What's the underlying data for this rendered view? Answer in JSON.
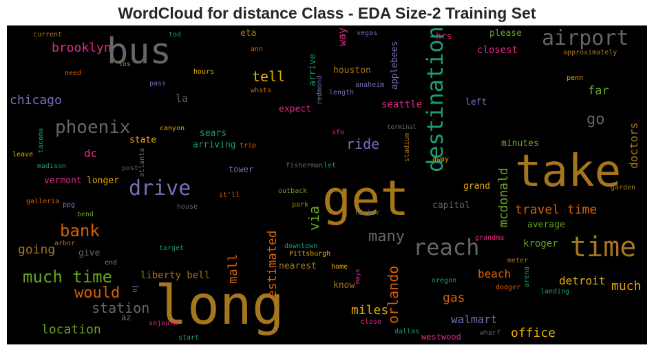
{
  "chart_data": {
    "type": "wordcloud",
    "title": "WordCloud for distance Class - EDA Size-2 Training Set",
    "background": "#000000",
    "words": [
      {
        "text": "bus",
        "color": "#666666"
      },
      {
        "text": "airport",
        "color": "#666666"
      },
      {
        "text": "take",
        "color": "#a6761d"
      },
      {
        "text": "get",
        "color": "#a6761d"
      },
      {
        "text": "long",
        "color": "#a6761d"
      },
      {
        "text": "time",
        "color": "#a6761d"
      },
      {
        "text": "destination",
        "color": "#1b9e77"
      },
      {
        "text": "reach",
        "color": "#666666"
      },
      {
        "text": "drive",
        "color": "#7570b3"
      },
      {
        "text": "phoenix",
        "color": "#666666"
      },
      {
        "text": "bank",
        "color": "#d95f02"
      },
      {
        "text": "much time",
        "color": "#66a61e"
      },
      {
        "text": "would",
        "color": "#d95f02"
      },
      {
        "text": "station",
        "color": "#666666"
      },
      {
        "text": "location",
        "color": "#66a61e"
      },
      {
        "text": "brooklyn",
        "color": "#e7298a"
      },
      {
        "text": "chicago",
        "color": "#7570b3"
      },
      {
        "text": "tell",
        "color": "#e6ab02"
      },
      {
        "text": "ride",
        "color": "#7570b3"
      },
      {
        "text": "go",
        "color": "#666666"
      },
      {
        "text": "far",
        "color": "#66a61e"
      },
      {
        "text": "many",
        "color": "#666666"
      },
      {
        "text": "travel time",
        "color": "#d95f02"
      },
      {
        "text": "via",
        "color": "#66a61e"
      },
      {
        "text": "mcdonald",
        "color": "#66a61e"
      },
      {
        "text": "estimated",
        "color": "#d95f02"
      },
      {
        "text": "mall",
        "color": "#d95f02"
      },
      {
        "text": "orlando",
        "color": "#d95f02"
      },
      {
        "text": "miles",
        "color": "#e6ab02"
      },
      {
        "text": "gas",
        "color": "#d95f02"
      },
      {
        "text": "walmart",
        "color": "#7570b3"
      },
      {
        "text": "office",
        "color": "#e6ab02"
      },
      {
        "text": "much",
        "color": "#e6ab02"
      },
      {
        "text": "detroit",
        "color": "#e6ab02"
      },
      {
        "text": "beach",
        "color": "#d95f02"
      },
      {
        "text": "kroger",
        "color": "#66a61e"
      },
      {
        "text": "average",
        "color": "#66a61e"
      },
      {
        "text": "grand",
        "color": "#e6ab02"
      },
      {
        "text": "capitol",
        "color": "#666666"
      },
      {
        "text": "doctors",
        "color": "#a6761d"
      },
      {
        "text": "minutes",
        "color": "#66a61e"
      },
      {
        "text": "closest",
        "color": "#e7298a"
      },
      {
        "text": "please",
        "color": "#66a61e"
      },
      {
        "text": "hrs",
        "color": "#e7298a"
      },
      {
        "text": "way",
        "color": "#e7298a"
      },
      {
        "text": "houston",
        "color": "#a6761d"
      },
      {
        "text": "applebees",
        "color": "#7570b3"
      },
      {
        "text": "seattle",
        "color": "#e7298a"
      },
      {
        "text": "left",
        "color": "#7570b3"
      },
      {
        "text": "expect",
        "color": "#e7298a"
      },
      {
        "text": "la",
        "color": "#666666"
      },
      {
        "text": "eta",
        "color": "#a6761d"
      },
      {
        "text": "dc",
        "color": "#e7298a"
      },
      {
        "text": "state",
        "color": "#e6ab02"
      },
      {
        "text": "sears",
        "color": "#1b9e77"
      },
      {
        "text": "arriving",
        "color": "#1b9e77"
      },
      {
        "text": "tower",
        "color": "#7570b3"
      },
      {
        "text": "vermont",
        "color": "#e7298a"
      },
      {
        "text": "longer",
        "color": "#e6ab02"
      },
      {
        "text": "going",
        "color": "#a6761d"
      },
      {
        "text": "give",
        "color": "#666666"
      },
      {
        "text": "liberty bell",
        "color": "#a6761d"
      },
      {
        "text": "downtown",
        "color": "#1b9e77"
      },
      {
        "text": "Pittsburgh",
        "color": "#e6ab02"
      },
      {
        "text": "nearest",
        "color": "#a6761d"
      },
      {
        "text": "home",
        "color": "#e6ab02"
      },
      {
        "text": "know",
        "color": "#a6761d"
      },
      {
        "text": "sfo",
        "color": "#e7298a"
      },
      {
        "text": "arrive",
        "color": "#1b9e77"
      },
      {
        "text": "redmond",
        "color": "#7570b3"
      },
      {
        "text": "length",
        "color": "#7570b3"
      },
      {
        "text": "anaheim",
        "color": "#7570b3"
      },
      {
        "text": "vegas",
        "color": "#7570b3"
      },
      {
        "text": "ann",
        "color": "#d95f02"
      },
      {
        "text": "whats",
        "color": "#d95f02"
      },
      {
        "text": "hours",
        "color": "#e6ab02"
      },
      {
        "text": "pass",
        "color": "#7570b3"
      },
      {
        "text": "need",
        "color": "#d95f02"
      },
      {
        "text": "los",
        "color": "#66a61e"
      },
      {
        "text": "current",
        "color": "#a6761d"
      },
      {
        "text": "tod",
        "color": "#1b9e77"
      },
      {
        "text": "canyon",
        "color": "#e6ab02"
      },
      {
        "text": "trip",
        "color": "#d95f02"
      },
      {
        "text": "terminal",
        "color": "#666666"
      },
      {
        "text": "stadium",
        "color": "#a6761d"
      },
      {
        "text": "away",
        "color": "#e6ab02"
      },
      {
        "text": "fisherman",
        "color": "#666666"
      },
      {
        "text": "let",
        "color": "#1b9e77"
      },
      {
        "text": "post",
        "color": "#666666"
      },
      {
        "text": "atlanta",
        "color": "#666666"
      },
      {
        "text": "madison",
        "color": "#1b9e77"
      },
      {
        "text": "leave",
        "color": "#e6ab02"
      },
      {
        "text": "tacoma",
        "color": "#1b9e77"
      },
      {
        "text": "outback",
        "color": "#66a61e"
      },
      {
        "text": "it'll",
        "color": "#d95f02"
      },
      {
        "text": "park",
        "color": "#a6761d"
      },
      {
        "text": "harbor",
        "color": "#666666"
      },
      {
        "text": "galleria",
        "color": "#d95f02"
      },
      {
        "text": "ppg",
        "color": "#7570b3"
      },
      {
        "text": "bend",
        "color": "#66a61e"
      },
      {
        "text": "house",
        "color": "#666666"
      },
      {
        "text": "target",
        "color": "#1b9e77"
      },
      {
        "text": "arbor",
        "color": "#a6761d"
      },
      {
        "text": "end",
        "color": "#7570b3"
      },
      {
        "text": "nj",
        "color": "#7570b3"
      },
      {
        "text": "az",
        "color": "#7570b3"
      },
      {
        "text": "sojourn",
        "color": "#e7298a"
      },
      {
        "text": "start",
        "color": "#1b9e77"
      },
      {
        "text": "close",
        "color": "#e7298a"
      },
      {
        "text": "mays",
        "color": "#e7298a"
      },
      {
        "text": "dallas",
        "color": "#1b9e77"
      },
      {
        "text": "westwood",
        "color": "#e7298a"
      },
      {
        "text": "wharf",
        "color": "#666666"
      },
      {
        "text": "oregon",
        "color": "#1b9e77"
      },
      {
        "text": "dodger",
        "color": "#d95f02"
      },
      {
        "text": "arena",
        "color": "#1b9e77"
      },
      {
        "text": "landing",
        "color": "#1b9e77"
      },
      {
        "text": "meter",
        "color": "#a6761d"
      },
      {
        "text": "grandma",
        "color": "#e7298a"
      },
      {
        "text": "garden",
        "color": "#a6761d"
      },
      {
        "text": "penn",
        "color": "#e6ab02"
      },
      {
        "text": "approximately",
        "color": "#a6761d"
      }
    ]
  }
}
